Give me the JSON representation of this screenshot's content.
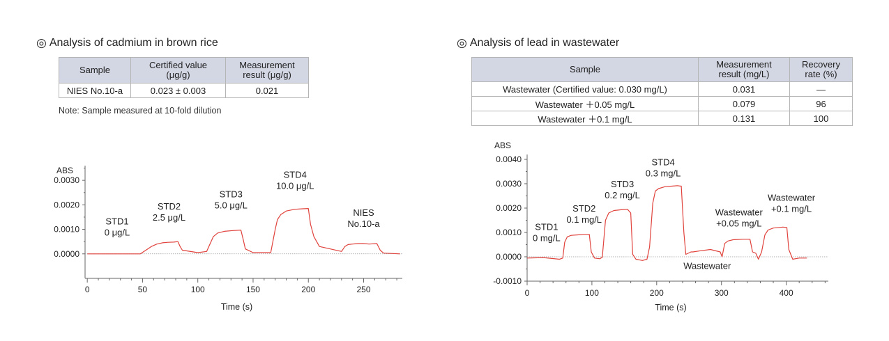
{
  "left": {
    "title": "Analysis of cadmium in brown rice",
    "title_mark": "◎",
    "table": {
      "headers": [
        "Sample",
        "Certified value\n(μg/g)",
        "Measurement\nresult (μg/g)"
      ],
      "rows": [
        [
          "NIES No.10-a",
          "0.023 ± 0.003",
          "0.021"
        ]
      ]
    },
    "note": "Note: Sample measured at 10-fold dilution"
  },
  "right": {
    "title": "Analysis of lead in wastewater",
    "title_mark": "◎",
    "table": {
      "headers": [
        "Sample",
        "Measurement\nresult (mg/L)",
        "Recovery\nrate (%)"
      ],
      "rows": [
        [
          "Wastewater (Certified value: 0.030 mg/L)",
          "0.031",
          "—"
        ],
        [
          "Wastewater ＋0.05 mg/L",
          "0.079",
          "96"
        ],
        [
          "Wastewater ＋0.1 mg/L",
          "0.131",
          "100"
        ]
      ]
    }
  },
  "chart_data": [
    {
      "type": "line",
      "title": "Analysis of cadmium in brown rice",
      "xlabel": "Time (s)",
      "ylabel": "ABS",
      "xlim": [
        -2,
        285
      ],
      "ylim": [
        -0.001,
        0.0036
      ],
      "xticks": [
        0,
        50,
        100,
        150,
        200,
        250
      ],
      "yticks": [
        0.0,
        0.001,
        0.002,
        0.003
      ],
      "ytick_labels": [
        "0.0000",
        "0.0010",
        "0.0020",
        "0.0030"
      ],
      "baseline": 0.0,
      "line_color": "#e0423c",
      "series": [
        {
          "name": "Cd signal",
          "x": [
            0,
            48,
            53,
            58,
            63,
            68,
            73,
            78,
            82,
            84,
            86,
            100,
            108,
            111,
            114,
            118,
            124,
            132,
            139,
            141,
            143,
            150,
            166,
            170,
            172,
            175,
            180,
            188,
            195,
            200,
            202,
            205,
            210,
            230,
            233,
            236,
            240,
            245,
            250,
            255,
            262,
            265,
            268,
            283
          ],
          "y": [
            0.0,
            0.0,
            0.00015,
            0.0003,
            0.0004,
            0.00045,
            0.00047,
            0.00048,
            0.0005,
            0.0003,
            0.00015,
            5e-05,
            0.0001,
            0.0004,
            0.0007,
            0.00085,
            0.00092,
            0.00095,
            0.00097,
            0.0006,
            0.0002,
            5e-05,
            5e-05,
            0.001,
            0.0014,
            0.0016,
            0.00175,
            0.00182,
            0.00184,
            0.00185,
            0.0012,
            0.0007,
            0.0003,
            0.0001,
            0.0003,
            0.00038,
            0.0004,
            0.00042,
            0.00042,
            0.0004,
            0.00042,
            0.00015,
            3e-05,
            0.0
          ]
        }
      ],
      "annotations": [
        {
          "lines": [
            "STD1",
            "0 μg/L"
          ],
          "x": 27,
          "y": 0.00075
        },
        {
          "lines": [
            "STD2",
            "2.5 μg/L"
          ],
          "x": 74,
          "y": 0.00135
        },
        {
          "lines": [
            "STD3",
            "5.0 μg/L"
          ],
          "x": 130,
          "y": 0.00185
        },
        {
          "lines": [
            "STD4",
            "10.0 μg/L"
          ],
          "x": 188,
          "y": 0.00265
        },
        {
          "lines": [
            "NIES",
            "No.10-a"
          ],
          "x": 250,
          "y": 0.0011
        }
      ]
    },
    {
      "type": "line",
      "title": "Analysis of lead in wastewater",
      "xlabel": "Time (s)",
      "ylabel": "ABS",
      "xlim": [
        0,
        465
      ],
      "ylim": [
        -0.001,
        0.0042
      ],
      "xticks": [
        0,
        100,
        200,
        300,
        400
      ],
      "yticks": [
        -0.001,
        0.0,
        0.001,
        0.002,
        0.003,
        0.004
      ],
      "ytick_labels": [
        "-0.0010",
        "0.0000",
        "0.0010",
        "0.0020",
        "0.0030",
        "0.0040"
      ],
      "baseline": 0.0,
      "line_color": "#e0423c",
      "series": [
        {
          "name": "Pb signal",
          "x": [
            0,
            25,
            50,
            55,
            58,
            62,
            68,
            78,
            88,
            96,
            99,
            104,
            112,
            116,
            121,
            126,
            134,
            145,
            155,
            160,
            163,
            168,
            178,
            185,
            189,
            194,
            198,
            203,
            213,
            223,
            232,
            238,
            242,
            245,
            253,
            256,
            268,
            283,
            298,
            301,
            305,
            310,
            318,
            333,
            344,
            348,
            353,
            357,
            362,
            367,
            372,
            380,
            395,
            401,
            404,
            410,
            420,
            432
          ],
          "y": [
            -5e-05,
            -3e-05,
            -0.0001,
            -5e-05,
            0.0006,
            0.00082,
            0.00088,
            0.0009,
            0.00092,
            0.00092,
            0.0002,
            -5e-05,
            -8e-05,
            -2e-05,
            0.0015,
            0.0018,
            0.0019,
            0.00193,
            0.00195,
            0.0018,
            0.0001,
            -0.0001,
            -0.00015,
            -0.0001,
            0.0004,
            0.0022,
            0.0027,
            0.0028,
            0.00288,
            0.0029,
            0.00292,
            0.0029,
            0.001,
            0.0001,
            0.0002,
            0.0002,
            0.00025,
            0.0003,
            0.0002,
            0.0,
            0.00055,
            0.00065,
            0.0007,
            0.00072,
            0.00072,
            0.0002,
            0.00015,
            -0.0001,
            0.0002,
            0.0009,
            0.0011,
            0.00118,
            0.00122,
            0.0012,
            0.0003,
            -0.0001,
            -5e-05,
            -5e-05
          ]
        }
      ],
      "annotations": [
        {
          "lines": [
            "STD1",
            "0 mg/L"
          ],
          "x": 30,
          "y": 0.00065
        },
        {
          "lines": [
            "STD2",
            "0.1 mg/L"
          ],
          "x": 88,
          "y": 0.0014
        },
        {
          "lines": [
            "STD3",
            "0.2 mg/L"
          ],
          "x": 147,
          "y": 0.0024
        },
        {
          "lines": [
            "STD4",
            "0.3 mg/L"
          ],
          "x": 210,
          "y": 0.0033
        },
        {
          "lines": [
            "Wastewater"
          ],
          "x": 278,
          "y": -0.0005
        },
        {
          "lines": [
            "Wastewater",
            "+0.05 mg/L"
          ],
          "x": 327,
          "y": 0.00125
        },
        {
          "lines": [
            "Wastewater",
            "+0.1 mg/L"
          ],
          "x": 408,
          "y": 0.00185
        }
      ]
    }
  ]
}
